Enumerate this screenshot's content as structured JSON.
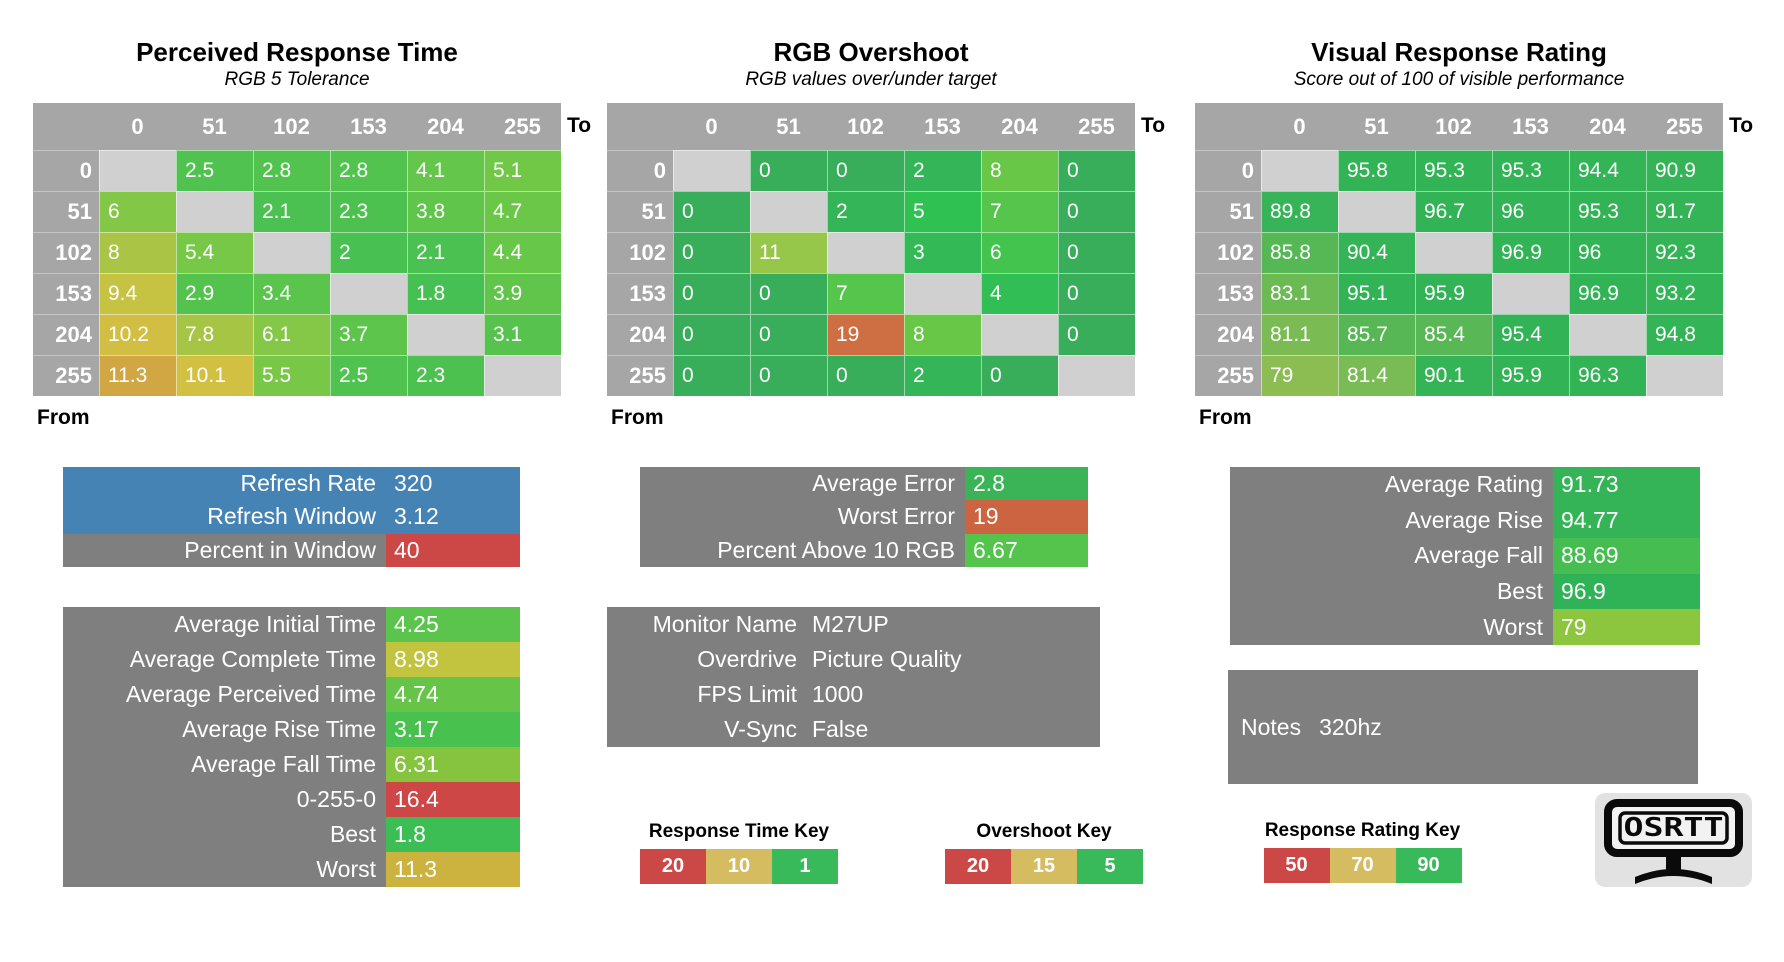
{
  "colors": {
    "header_grey": "#A6A6A6",
    "diagonal_grey": "#D1D0D0",
    "panel_grey": "#7F7F7F",
    "panel_blue": "#4683B5",
    "key_red": "#CC4847",
    "key_gold": "#D5BC60",
    "key_green": "#38B95A"
  },
  "chart_data": [
    {
      "type": "heatmap",
      "title": "Perceived Response Time",
      "subtitle": "RGB 5 Tolerance",
      "x_axis_label": "To",
      "y_axis_label": "From",
      "categories": [
        "0",
        "51",
        "102",
        "153",
        "204",
        "255"
      ],
      "rows": [
        [
          "",
          "2.5",
          "2.8",
          "2.8",
          "4.1",
          "5.1"
        ],
        [
          "6",
          "",
          "2.1",
          "2.3",
          "3.8",
          "4.7"
        ],
        [
          "8",
          "5.4",
          "",
          "2",
          "2.1",
          "4.4"
        ],
        [
          "9.4",
          "2.9",
          "3.4",
          "",
          "1.8",
          "3.9"
        ],
        [
          "10.2",
          "7.8",
          "6.1",
          "3.7",
          "",
          "3.1"
        ],
        [
          "11.3",
          "10.1",
          "5.5",
          "2.5",
          "2.3",
          ""
        ]
      ],
      "color_scale": [
        [
          1,
          "#3CBE55"
        ],
        [
          5,
          "#6FC847"
        ],
        [
          10,
          "#D2C243"
        ],
        [
          16,
          "#CB4745"
        ]
      ]
    },
    {
      "type": "heatmap",
      "title": "RGB Overshoot",
      "subtitle": "RGB values over/under target",
      "x_axis_label": "To",
      "y_axis_label": "From",
      "categories": [
        "0",
        "51",
        "102",
        "153",
        "204",
        "255"
      ],
      "rows": [
        [
          "",
          "0",
          "0",
          "2",
          "8",
          "0"
        ],
        [
          "0",
          "",
          "2",
          "5",
          "7",
          "0"
        ],
        [
          "0",
          "11",
          "",
          "3",
          "6",
          "0"
        ],
        [
          "0",
          "0",
          "7",
          "",
          "4",
          "0"
        ],
        [
          "0",
          "0",
          "19",
          "8",
          "",
          "0"
        ],
        [
          "0",
          "0",
          "0",
          "2",
          "0",
          ""
        ]
      ],
      "color_scale": [
        [
          0,
          "#38AD5A"
        ],
        [
          5,
          "#2FC253"
        ],
        [
          8,
          "#69C747"
        ],
        [
          15,
          "#D3C44F"
        ],
        [
          20,
          "#CB5A3F"
        ]
      ]
    },
    {
      "type": "heatmap",
      "title": "Visual Response Rating",
      "subtitle": "Score out of 100 of visible performance",
      "x_axis_label": "To",
      "y_axis_label": "From",
      "categories": [
        "0",
        "51",
        "102",
        "153",
        "204",
        "255"
      ],
      "rows": [
        [
          "",
          "95.8",
          "95.3",
          "95.3",
          "94.4",
          "90.9"
        ],
        [
          "89.8",
          "",
          "96.7",
          "96",
          "95.3",
          "91.7"
        ],
        [
          "85.8",
          "90.4",
          "",
          "96.9",
          "96",
          "92.3"
        ],
        [
          "83.1",
          "95.1",
          "95.9",
          "",
          "96.9",
          "93.2"
        ],
        [
          "81.1",
          "85.7",
          "85.4",
          "95.4",
          "",
          "94.8"
        ],
        [
          "79",
          "81.4",
          "90.1",
          "95.9",
          "96.3",
          ""
        ]
      ],
      "color_scale": [
        [
          50,
          "#CB4745"
        ],
        [
          70,
          "#D3C44F"
        ],
        [
          90,
          "#35B457"
        ],
        [
          100,
          "#2FB356"
        ]
      ]
    }
  ],
  "panels": {
    "refresh_summary": {
      "rows": [
        {
          "label": "Refresh Rate",
          "value": "320",
          "label_bg": "#4683B5",
          "value_bg": "#4683B5"
        },
        {
          "label": "Refresh Window",
          "value": "3.12",
          "label_bg": "#4683B5",
          "value_bg": "#4683B5"
        },
        {
          "label": "Percent in Window",
          "value": "40",
          "label_bg": "#7F7F7F",
          "value_bg": "#CC4847"
        }
      ]
    },
    "response_time_summary": {
      "rows": [
        {
          "label": "Average Initial Time",
          "value": "4.25",
          "value_bg": "#5BC44C"
        },
        {
          "label": "Average Complete Time",
          "value": "8.98",
          "value_bg": "#C2C440"
        },
        {
          "label": "Average Perceived Time",
          "value": "4.74",
          "value_bg": "#66C549"
        },
        {
          "label": "Average Rise Time",
          "value": "3.17",
          "value_bg": "#48C14F"
        },
        {
          "label": "Average Fall Time",
          "value": "6.31",
          "value_bg": "#86C43F"
        },
        {
          "label": "0-255-0",
          "value": "16.4",
          "value_bg": "#CC4745"
        },
        {
          "label": "Best",
          "value": "1.8",
          "value_bg": "#3CBE55"
        },
        {
          "label": "Worst",
          "value": "11.3",
          "value_bg": "#CCB23E"
        }
      ]
    },
    "overshoot_summary": {
      "rows": [
        {
          "label": "Average Error",
          "value": "2.8",
          "value_bg": "#3BB458"
        },
        {
          "label": "Worst Error",
          "value": "19",
          "value_bg": "#CC6441"
        },
        {
          "label": "Percent Above 10 RGB",
          "value": "6.67",
          "value_bg": "#55C44C"
        }
      ]
    },
    "monitor_info": {
      "rows": [
        {
          "label": "Monitor Name",
          "value": "M27UP"
        },
        {
          "label": "Overdrive",
          "value": "Picture Quality"
        },
        {
          "label": "FPS Limit",
          "value": "1000"
        },
        {
          "label": "V-Sync",
          "value": "False"
        }
      ]
    },
    "rating_summary": {
      "rows": [
        {
          "label": "Average Rating",
          "value": "91.73",
          "value_bg": "#35B457"
        },
        {
          "label": "Average Rise",
          "value": "94.77",
          "value_bg": "#35B457"
        },
        {
          "label": "Average Fall",
          "value": "88.69",
          "value_bg": "#45BD50"
        },
        {
          "label": "Best",
          "value": "96.9",
          "value_bg": "#2FB356"
        },
        {
          "label": "Worst",
          "value": "79",
          "value_bg": "#8CC63F"
        }
      ]
    },
    "notes": {
      "label": "Notes",
      "value": "320hz"
    }
  },
  "keys": [
    {
      "title": "Response Time Key",
      "cells": [
        {
          "label": "20",
          "bg": "#CC4847"
        },
        {
          "label": "10",
          "bg": "#D5BC60"
        },
        {
          "label": "1",
          "bg": "#38B95A"
        }
      ]
    },
    {
      "title": "Overshoot Key",
      "cells": [
        {
          "label": "20",
          "bg": "#CC4847"
        },
        {
          "label": "15",
          "bg": "#D5BC60"
        },
        {
          "label": "5",
          "bg": "#38B95A"
        }
      ]
    },
    {
      "title": "Response Rating Key",
      "cells": [
        {
          "label": "50",
          "bg": "#CC4847"
        },
        {
          "label": "70",
          "bg": "#D5BC60"
        },
        {
          "label": "90",
          "bg": "#38B95A"
        }
      ]
    }
  ],
  "logo": {
    "text": "OSRTT"
  }
}
